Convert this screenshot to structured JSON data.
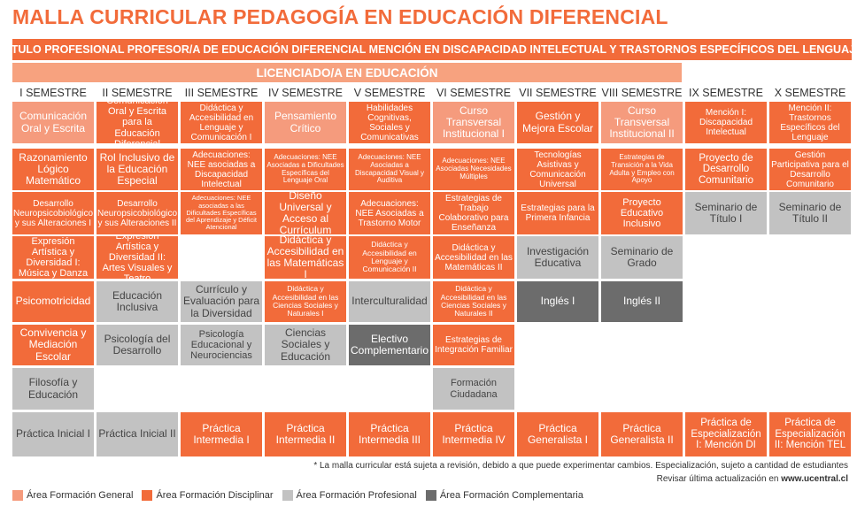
{
  "title": "MALLA CURRICULAR PEDAGOGÍA EN EDUCACIÓN DIFERENCIAL",
  "subtitle": "TITULO PROFESIONAL PROFESOR/A DE EDUCACIÓN DIFERENCIAL MENCIÓN EN DISCAPACIDAD INTELECTUAL Y TRASTORNOS ESPECÍFICOS DEL LENGUAJE",
  "degree": "LICENCIADO/A EN EDUCACIÓN",
  "semesters": [
    "I SEMESTRE",
    "II SEMESTRE",
    "III SEMESTRE",
    "IV SEMESTRE",
    "V SEMESTRE",
    "VI SEMESTRE",
    "VII SEMESTRE",
    "VIII SEMESTRE",
    "IX SEMESTRE",
    "X SEMESTRE"
  ],
  "colors": {
    "general": "#f59b7d",
    "disciplinar": "#f26b3a",
    "profesional": "#c2c2c2",
    "complementaria": "#6c6c6c"
  },
  "courses": [
    [
      "Comunicación Oral y Escrita",
      "Razonamiento Lógico Matemático",
      "Desarrollo Neuropsicobiológico y sus Alteraciones I",
      "Expresión Artística y Diversidad I: Música y Danza",
      "Psicomotricidad",
      "Convivencia y Mediación Escolar",
      "Filosofía y Educación",
      "Práctica Inicial I"
    ],
    [
      "Comunicación Oral y Escrita para la Educación Diferencial",
      "Rol Inclusivo de la Educación Especial",
      "Desarrollo Neuropsicobiológico y sus Alteraciones II",
      "Expresión Artística y Diversidad II: Artes Visuales y Teatro",
      "Educación Inclusiva",
      "Psicología del Desarrollo",
      "Práctica Inicial II"
    ],
    [
      "Didáctica y Accesibilidad en Lenguaje y Comunicación I",
      "Adecuaciones: NEE asociadas a Discapacidad Intelectual",
      "Adecuaciones: NEE asociadas a las Dificultades Específicas del Aprendizaje y Déficit Atencional",
      "Currículo y Evaluación para la Diversidad",
      "Psicología Educacional y Neurociencias",
      "Práctica Intermedia I"
    ],
    [
      "Pensamiento Crítico",
      "Adecuaciones: NEE Asociadas a Dificultades Específicas del Lenguaje Oral",
      "Diseño Universal y Acceso al Currículum",
      "Didáctica y Accesibilidad en las Matemáticas I",
      "Didáctica y Accesibilidad en las Ciencias Sociales y Naturales I",
      "Ciencias Sociales y Educación",
      "Práctica Intermedia II"
    ],
    [
      "Habilidades Cognitivas, Sociales y Comunicativas",
      "Adecuaciones: NEE Asociadas a Discapacidad Visual y Auditiva",
      "Adecuaciones: NEE Asociadas a Trastorno Motor",
      "Didáctica y Accesibilidad en Lenguaje y Comunicación II",
      "Interculturalidad",
      "Electivo Complementario",
      "Práctica Intermedia III"
    ],
    [
      "Curso Transversal Institucional I",
      "Adecuaciones: NEE Asociadas Necesidades Múltiples",
      "Estrategias de Trabajo Colaborativo para Enseñanza",
      "Didáctica y Accesibilidad en las Matemáticas II",
      "Didáctica y Accesibilidad en las Ciencias Sociales y Naturales II",
      "Estrategias de Integración Familiar",
      "Formación Ciudadana",
      "Práctica Intermedia IV"
    ],
    [
      "Gestión y Mejora Escolar",
      "Tecnologías Asistivas y Comunicación Universal",
      "Estrategias para la Primera Infancia",
      "Investigación Educativa",
      "Inglés I",
      "Práctica Generalista I"
    ],
    [
      "Curso Transversal Institucional II",
      "Estrategias de Transición a la Vida Adulta y Empleo con Apoyo",
      "Proyecto Educativo Inclusivo",
      "Seminario de Grado",
      "Inglés II",
      "Práctica Generalista II"
    ],
    [
      "Mención I: Discapacidad Intelectual",
      "Proyecto de Desarrollo Comunitario",
      "Seminario de Título I",
      "Práctica de Especialización I: Mención DI"
    ],
    [
      "Mención II: Trastornos Específicos del Lenguaje",
      "Gestión Participativa para el Desarrollo Comunitario",
      "Seminario de Título II",
      "Práctica de Especialización II: Mención TEL"
    ]
  ],
  "note1": "* La malla curricular está sujeta a revisión, debido a que puede experimentar cambios. Especialización, sujeto a cantidad de estudiantes",
  "note2_prefix": "Revisar última actualización en ",
  "note2_link": "www.ucentral.cl",
  "legend": [
    "Área Formación General",
    "Área Formación Disciplinar",
    "Área Formación Profesional",
    "Área Formación Complementaria"
  ]
}
